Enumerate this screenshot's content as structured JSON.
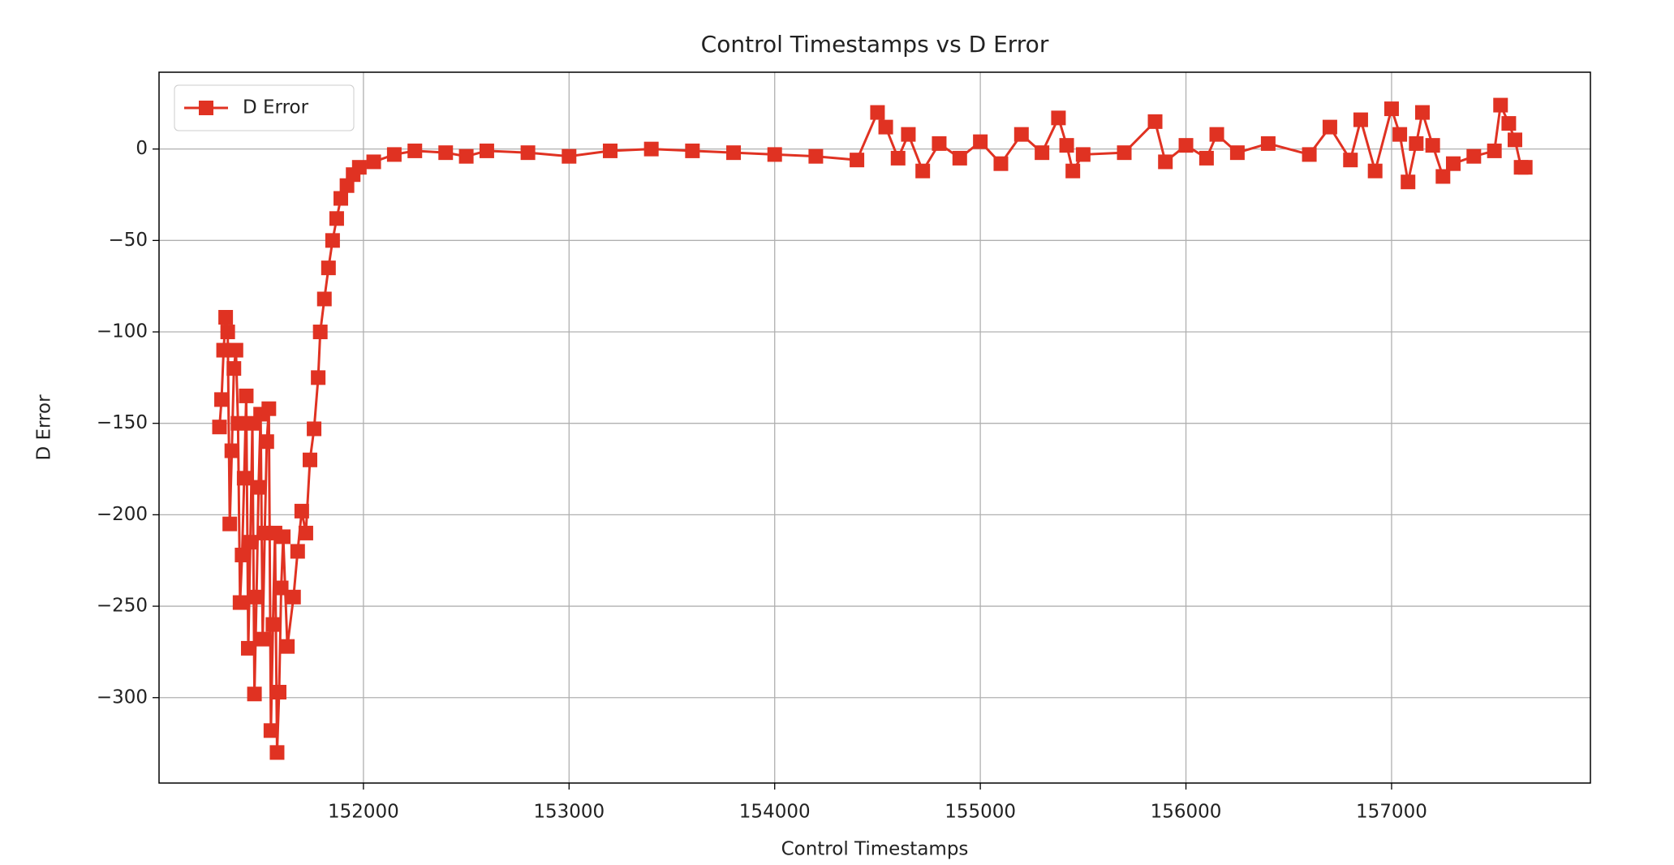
{
  "chart_data": {
    "type": "line",
    "title": "Control Timestamps vs D Error",
    "xlabel": "Control Timestamps",
    "ylabel": "D Error",
    "x": [
      151300,
      151310,
      151320,
      151330,
      151340,
      151350,
      151360,
      151370,
      151380,
      151390,
      151400,
      151410,
      151420,
      151430,
      151440,
      151450,
      151460,
      151470,
      151480,
      151490,
      151500,
      151510,
      151520,
      151530,
      151540,
      151550,
      151560,
      151570,
      151580,
      151590,
      151600,
      151610,
      151630,
      151660,
      151680,
      151700,
      151720,
      151740,
      151760,
      151780,
      151790,
      151810,
      151830,
      151850,
      151870,
      151890,
      151920,
      151950,
      151980,
      152050,
      152150,
      152250,
      152400,
      152500,
      152600,
      152800,
      153000,
      153200,
      153400,
      153600,
      153800,
      154000,
      154200,
      154400,
      154500,
      154540,
      154600,
      154650,
      154720,
      154800,
      154900,
      155000,
      155100,
      155200,
      155300,
      155380,
      155420,
      155450,
      155500,
      155700,
      155850,
      155900,
      156000,
      156100,
      156150,
      156250,
      156400,
      156600,
      156700,
      156800,
      156850,
      156920,
      157000,
      157040,
      157080,
      157120,
      157150,
      157200,
      157250,
      157300,
      157400,
      157500,
      157530,
      157570,
      157600,
      157630,
      157650
    ],
    "series": [
      {
        "name": "D Error",
        "color": "#e03222",
        "marker": "square",
        "values": [
          -152,
          -137,
          -110,
          -92,
          -100,
          -205,
          -165,
          -120,
          -110,
          -150,
          -248,
          -222,
          -180,
          -135,
          -273,
          -215,
          -150,
          -298,
          -245,
          -185,
          -145,
          -268,
          -210,
          -160,
          -142,
          -318,
          -260,
          -210,
          -330,
          -297,
          -240,
          -212,
          -272,
          -245,
          -220,
          -198,
          -210,
          -170,
          -153,
          -125,
          -100,
          -82,
          -65,
          -50,
          -38,
          -27,
          -20,
          -14,
          -10,
          -7,
          -3,
          -1,
          -2,
          -4,
          -1,
          -2,
          -4,
          -1,
          0,
          -1,
          -2,
          -3,
          -4,
          -6,
          20,
          12,
          -5,
          8,
          -12,
          3,
          -5,
          4,
          -8,
          8,
          -2,
          17,
          2,
          -12,
          -3,
          -2,
          15,
          -7,
          2,
          -5,
          8,
          -2,
          3,
          -3,
          12,
          -6,
          16,
          -12,
          22,
          8,
          -18,
          3,
          20,
          2,
          -15,
          -8,
          -4,
          -1,
          24,
          14,
          5,
          -10,
          -10
        ]
      }
    ],
    "xlim": [
      151006,
      157967
    ],
    "ylim": [
      -346.7,
      42
    ],
    "xticks": [
      152000,
      153000,
      154000,
      155000,
      156000,
      157000
    ],
    "yticks": [
      {
        "value": -300,
        "label": "−300"
      },
      {
        "value": -250,
        "label": "−250"
      },
      {
        "value": -200,
        "label": "−200"
      },
      {
        "value": -150,
        "label": "−150"
      },
      {
        "value": -100,
        "label": "−100"
      },
      {
        "value": -50,
        "label": "−50"
      },
      0
    ],
    "grid": true,
    "legend": "upper left"
  }
}
